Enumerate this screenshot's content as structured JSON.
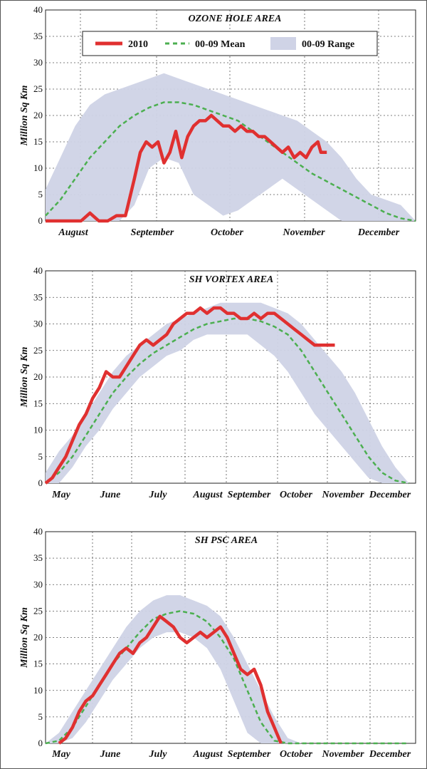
{
  "legend": {
    "items": [
      {
        "label": "2010",
        "color": "#e03030",
        "kind": "line"
      },
      {
        "label": "00-09 Mean",
        "color": "#4caf50",
        "kind": "dash"
      },
      {
        "label": "00-09 Range",
        "color": "#cfd3e6",
        "kind": "band"
      }
    ]
  },
  "chart_data": [
    {
      "type": "area",
      "title": "OZONE HOLE AREA",
      "ylabel": "Million Sq Km",
      "ylim": [
        0,
        40
      ],
      "yticks": [
        0,
        5,
        10,
        15,
        20,
        25,
        30,
        35,
        40
      ],
      "grid": true,
      "legend_position": "top",
      "x_months": [
        "August",
        "September",
        "October",
        "November",
        "December"
      ],
      "series": [
        {
          "name": "2010",
          "x": [
            0,
            3,
            6,
            9,
            12,
            15,
            18,
            21,
            24,
            27,
            30,
            32,
            34,
            36,
            38,
            40,
            42,
            44,
            46,
            48,
            50,
            52,
            54,
            56,
            58,
            60,
            62,
            64,
            66,
            68,
            70,
            72,
            74,
            76,
            78,
            80,
            82,
            84,
            86,
            88,
            90,
            92,
            93,
            95
          ],
          "y": [
            0,
            0,
            0,
            0,
            0,
            1.5,
            0,
            0,
            1,
            1,
            8,
            13,
            15,
            14,
            15,
            11,
            13,
            17,
            12,
            16,
            18,
            19,
            19,
            20,
            19,
            18,
            18,
            17,
            18,
            17,
            17,
            16,
            16,
            15,
            14,
            13,
            14,
            12,
            13,
            12,
            14,
            15,
            13,
            13
          ]
        },
        {
          "name": "00-09 Mean",
          "x": [
            0,
            5,
            10,
            15,
            20,
            25,
            30,
            35,
            40,
            45,
            50,
            55,
            60,
            65,
            70,
            75,
            80,
            85,
            90,
            95,
            100,
            105,
            110,
            115,
            120,
            125
          ],
          "y": [
            1,
            4,
            8,
            12,
            15,
            18,
            20,
            21.5,
            22.5,
            22.5,
            22,
            21,
            20,
            19,
            17,
            15,
            13,
            11,
            9,
            7.5,
            6,
            4.5,
            3,
            1.5,
            0.5,
            0
          ]
        },
        {
          "name": "00-09 Range",
          "x": [
            0,
            5,
            10,
            15,
            20,
            25,
            30,
            35,
            40,
            45,
            50,
            55,
            60,
            65,
            70,
            75,
            80,
            85,
            90,
            95,
            100,
            105,
            110,
            115,
            120,
            125
          ],
          "low": [
            0,
            0,
            0,
            0,
            0,
            0,
            3,
            10,
            12,
            11,
            5,
            3,
            1,
            2,
            4,
            6,
            8,
            6,
            4,
            2,
            0,
            0,
            0,
            0,
            0,
            0
          ],
          "high": [
            6,
            12,
            18,
            22,
            24,
            25,
            26,
            27,
            28,
            27,
            26,
            25,
            24,
            23,
            22,
            21,
            20,
            19,
            17,
            15,
            12,
            8,
            5,
            4,
            3,
            0
          ]
        }
      ]
    },
    {
      "type": "area",
      "title": "SH VORTEX AREA",
      "ylabel": "Million Sq Km",
      "ylim": [
        0,
        40
      ],
      "yticks": [
        0,
        5,
        10,
        15,
        20,
        25,
        30,
        35,
        40
      ],
      "grid": true,
      "x_months": [
        "May",
        "June",
        "July",
        "August",
        "September",
        "October",
        "November",
        "December"
      ],
      "series": [
        {
          "name": "2010",
          "x": [
            0,
            5,
            10,
            15,
            20,
            25,
            30,
            35,
            40,
            45,
            50,
            55,
            60,
            65,
            70,
            75,
            80,
            85,
            90,
            95,
            100,
            105,
            110,
            115,
            120,
            125,
            130,
            135,
            140,
            145,
            150,
            155,
            160,
            165,
            170,
            175,
            180,
            185,
            190,
            195,
            200,
            205,
            210,
            215
          ],
          "y": [
            0,
            1,
            3,
            5,
            8,
            11,
            13,
            16,
            18,
            21,
            20,
            20,
            22,
            24,
            26,
            27,
            26,
            27,
            28,
            30,
            31,
            32,
            32,
            33,
            32,
            33,
            33,
            32,
            32,
            31,
            31,
            32,
            31,
            32,
            32,
            31,
            30,
            29,
            28,
            27,
            26,
            26,
            26,
            26
          ]
        },
        {
          "name": "00-09 Mean",
          "x": [
            0,
            10,
            20,
            30,
            40,
            50,
            60,
            70,
            80,
            90,
            100,
            110,
            120,
            130,
            140,
            150,
            160,
            170,
            180,
            190,
            200,
            210,
            220,
            230,
            240,
            250,
            260,
            270
          ],
          "y": [
            0,
            2,
            5,
            9,
            13,
            17,
            20,
            22.5,
            24.5,
            26,
            27.5,
            29,
            30,
            30.5,
            31,
            31,
            30.5,
            29.5,
            28,
            25,
            21,
            17,
            13,
            9,
            5,
            2,
            0.5,
            0
          ]
        },
        {
          "name": "00-09 Range",
          "x": [
            0,
            10,
            20,
            30,
            40,
            50,
            60,
            70,
            80,
            90,
            100,
            110,
            120,
            130,
            140,
            150,
            160,
            170,
            180,
            190,
            200,
            210,
            220,
            230,
            240,
            250,
            260,
            270
          ],
          "low": [
            0,
            0,
            3,
            7,
            10,
            14,
            17,
            20,
            22,
            24,
            25,
            27,
            28,
            28,
            28,
            28,
            26,
            24,
            21,
            17,
            13,
            10,
            7,
            4,
            1,
            0,
            0,
            0
          ],
          "high": [
            2,
            6,
            9,
            13,
            17,
            21,
            24,
            26,
            28,
            30,
            31,
            32,
            33,
            34,
            34,
            34,
            34,
            33,
            32,
            30,
            27,
            24,
            21,
            17,
            12,
            7,
            3,
            0
          ]
        }
      ]
    },
    {
      "type": "area",
      "title": "SH PSC AREA",
      "ylabel": "Million Sq Km",
      "ylim": [
        0,
        40
      ],
      "yticks": [
        0,
        5,
        10,
        15,
        20,
        25,
        30,
        35,
        40
      ],
      "grid": true,
      "x_months": [
        "May",
        "June",
        "July",
        "August",
        "September",
        "October",
        "November",
        "December"
      ],
      "series": [
        {
          "name": "2010",
          "x": [
            10,
            15,
            20,
            25,
            30,
            35,
            40,
            45,
            50,
            55,
            60,
            65,
            70,
            75,
            80,
            85,
            90,
            95,
            100,
            105,
            110,
            115,
            120,
            125,
            130,
            135,
            140,
            145,
            150,
            155,
            160,
            165,
            170,
            175
          ],
          "y": [
            0,
            1,
            3,
            6,
            8,
            9,
            11,
            13,
            15,
            17,
            18,
            17,
            19,
            20,
            22,
            24,
            23,
            22,
            20,
            19,
            20,
            21,
            20,
            21,
            22,
            20,
            17,
            14,
            13,
            14,
            11,
            6,
            3,
            0
          ]
        },
        {
          "name": "00-09 Mean",
          "x": [
            0,
            10,
            20,
            30,
            40,
            50,
            60,
            70,
            80,
            90,
            100,
            110,
            120,
            130,
            140,
            150,
            160,
            170,
            180,
            190,
            200,
            210,
            220,
            230,
            240,
            250,
            260,
            270
          ],
          "y": [
            0,
            0.5,
            3,
            7,
            11,
            15,
            18,
            21,
            23.5,
            24.5,
            25,
            24.5,
            23,
            20,
            16,
            10,
            4,
            0.5,
            0,
            0,
            0,
            0,
            0,
            0,
            0,
            0,
            0,
            0
          ]
        },
        {
          "name": "00-09 Range",
          "x": [
            0,
            10,
            20,
            30,
            40,
            50,
            60,
            70,
            80,
            90,
            100,
            110,
            120,
            130,
            140,
            150,
            160,
            170,
            180,
            190,
            200,
            210,
            220,
            230,
            240,
            250,
            260,
            270
          ],
          "low": [
            0,
            0,
            1,
            4,
            8,
            12,
            15,
            18,
            20,
            21,
            21,
            20,
            18,
            14,
            8,
            2,
            0,
            0,
            0,
            0,
            0,
            0,
            0,
            0,
            0,
            0,
            0,
            0
          ],
          "high": [
            0,
            2,
            6,
            10,
            14,
            18,
            22,
            25,
            27,
            28,
            28,
            27,
            26,
            24,
            20,
            15,
            10,
            5,
            1,
            0,
            0,
            0,
            0,
            0,
            0,
            0,
            0,
            0
          ]
        }
      ]
    }
  ]
}
